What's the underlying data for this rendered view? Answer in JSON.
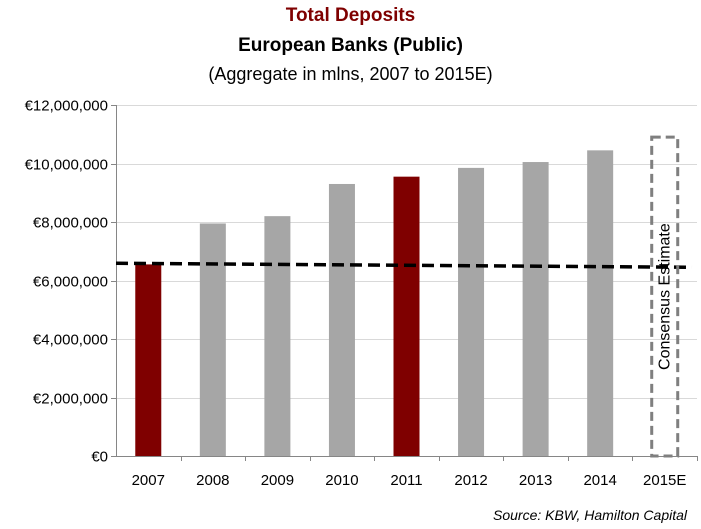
{
  "chart_data": {
    "type": "bar",
    "title": "Total Deposits",
    "subtitle": "European Banks (Public)",
    "note": "(Aggregate in mlns, 2007 to 2015E)",
    "source": "Source: KBW, Hamilton Capital",
    "categories": [
      "2007",
      "2008",
      "2009",
      "2010",
      "2011",
      "2012",
      "2013",
      "2014",
      "2015E"
    ],
    "values": [
      6550000,
      7950000,
      8200000,
      9300000,
      9550000,
      9850000,
      10050000,
      10450000,
      null
    ],
    "highlighted_categories": [
      "2007",
      "2011"
    ],
    "reference_line": {
      "value": 6520000,
      "style": "dashed"
    },
    "estimate_box": {
      "category": "2015E",
      "label": "Consensus Estimate",
      "value": 10900000,
      "style": "dashed"
    },
    "yticks": [
      "€0",
      "€2,000,000",
      "€4,000,000",
      "€6,000,000",
      "€8,000,000",
      "€10,000,000",
      "€12,000,000"
    ],
    "ylim": [
      0,
      12000000
    ],
    "grid": true,
    "xlabel": "",
    "ylabel": "",
    "colors": {
      "title": "#7f0000",
      "highlight": "#7f0000",
      "bar": "#a6a6a6",
      "grid": "#d9d9d9",
      "axis": "#868686",
      "reference": "#000000",
      "estimate_box": "#7f7f7f"
    }
  }
}
